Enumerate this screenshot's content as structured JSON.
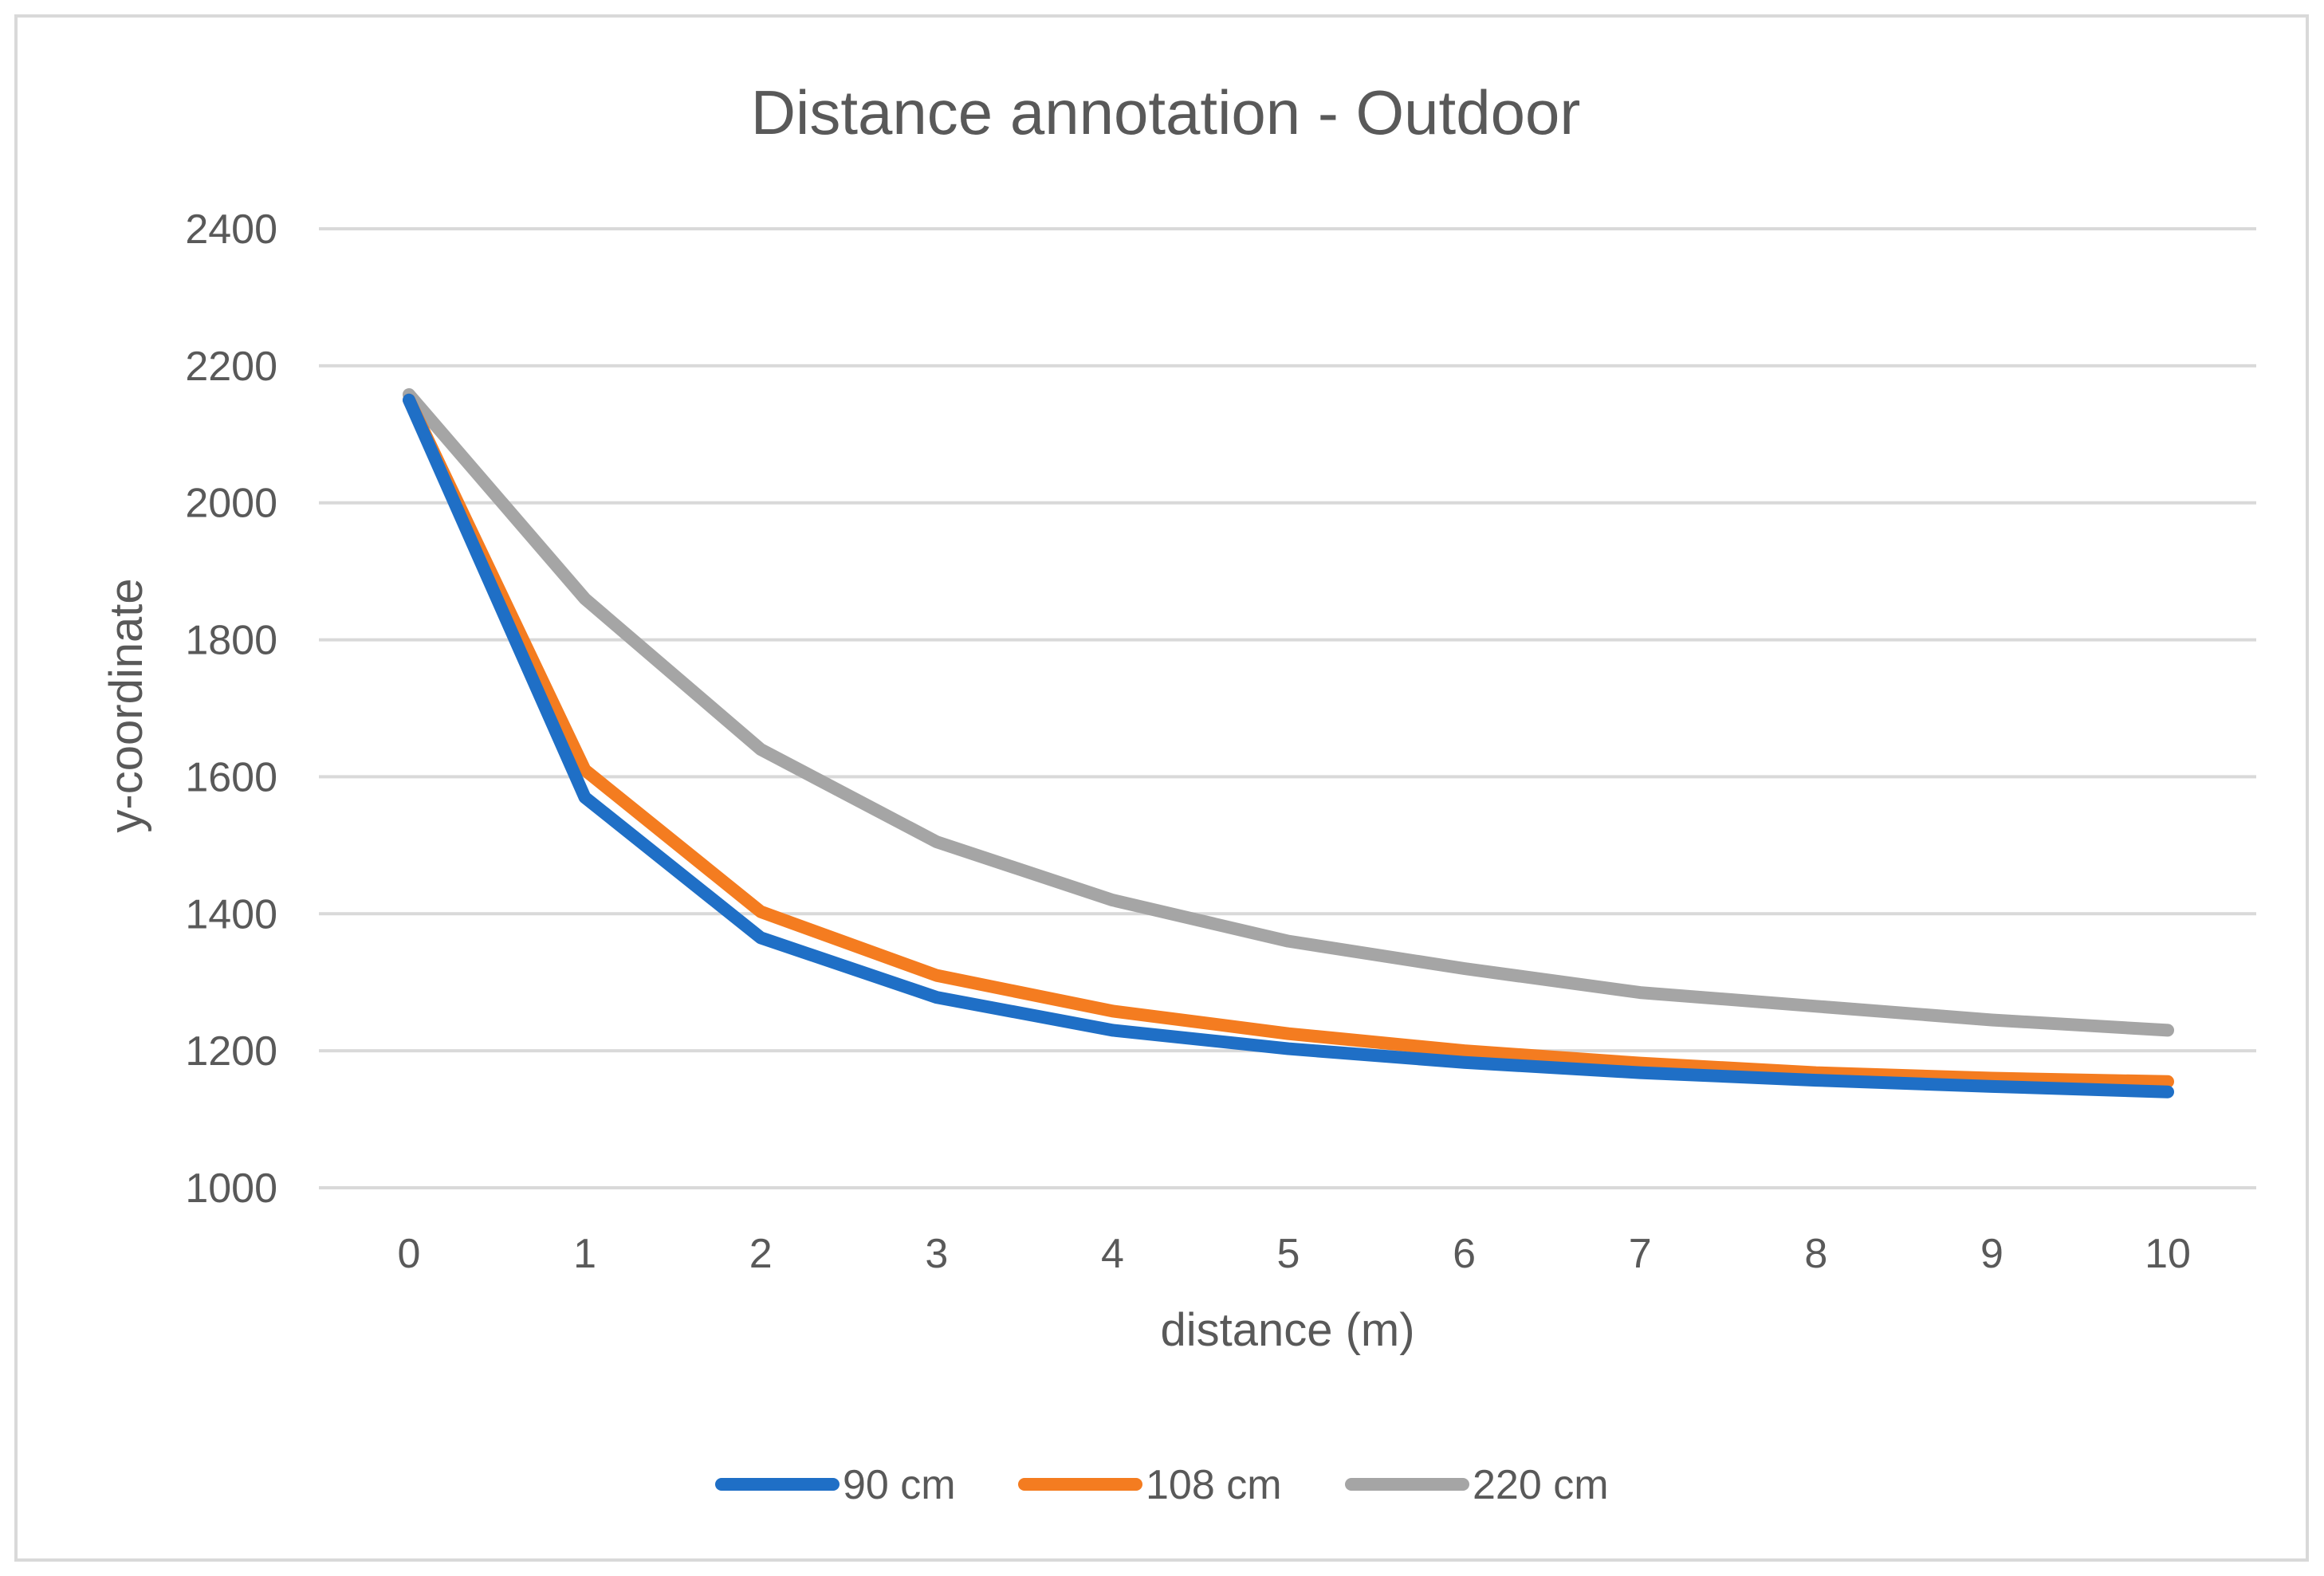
{
  "chart_data": {
    "type": "line",
    "title": "Distance annotation - Outdoor",
    "xlabel": "distance (m)",
    "ylabel": "y-coordinate",
    "categories": [
      "0",
      "1",
      "2",
      "3",
      "4",
      "5",
      "6",
      "7",
      "8",
      "9",
      "10"
    ],
    "ylim": [
      1000,
      2400
    ],
    "yticks": [
      "1000",
      "1200",
      "1400",
      "1600",
      "1800",
      "2000",
      "2200",
      "2400"
    ],
    "grid": true,
    "legend_position": "bottom",
    "series": [
      {
        "name": "90 cm",
        "color": "#1f6fc6",
        "values": [
          2150,
          1570,
          1365,
          1278,
          1230,
          1203,
          1183,
          1168,
          1157,
          1148,
          1140
        ]
      },
      {
        "name": "108 cm",
        "color": "#f47c20",
        "values": [
          2150,
          1610,
          1403,
          1310,
          1258,
          1225,
          1200,
          1182,
          1168,
          1160,
          1155
        ]
      },
      {
        "name": "220 cm",
        "color": "#a5a5a5",
        "values": [
          2158,
          1860,
          1640,
          1505,
          1420,
          1360,
          1320,
          1285,
          1265,
          1245,
          1230
        ]
      }
    ]
  }
}
